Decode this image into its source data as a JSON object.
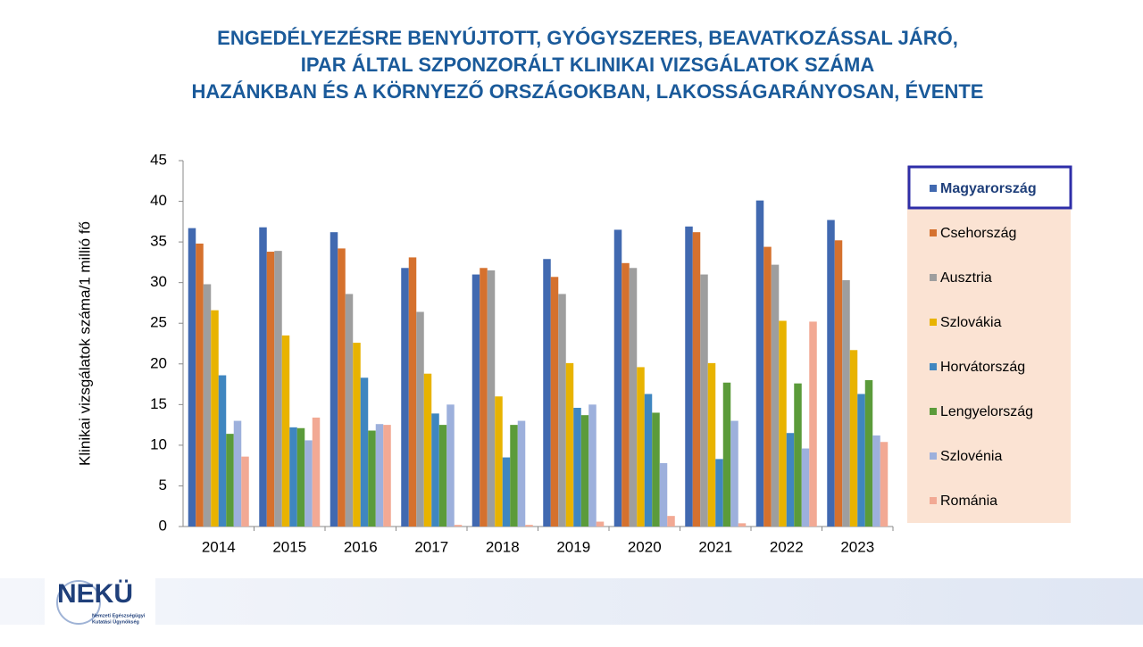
{
  "chart_data": {
    "type": "bar",
    "title": [
      "ENGEDÉLYEZÉSRE BENYÚJTOTT, GYÓGYSZERES, BEAVATKOZÁSSAL JÁRÓ,",
      "IPAR ÁLTAL SZPONZORÁLT KLINIKAI VIZSGÁLATOK SZÁMA",
      "HAZÁNKBAN ÉS A KÖRNYEZŐ ORSZÁGOKBAN, LAKOSSÁGARÁNYOSAN, ÉVENTE"
    ],
    "y_label": "Klinikai vizsgálatok száma/1  millió fő",
    "categories": [
      "2014",
      "2015",
      "2016",
      "2017",
      "2018",
      "2019",
      "2020",
      "2021",
      "2022",
      "2023"
    ],
    "series": [
      {
        "name": "Magyarország",
        "color": "#4169b0",
        "values": [
          36.7,
          36.8,
          36.2,
          31.8,
          31.0,
          32.9,
          36.5,
          36.9,
          40.1,
          37.7
        ]
      },
      {
        "name": "Csehország",
        "color": "#d5712e",
        "values": [
          34.8,
          33.8,
          34.2,
          33.1,
          31.8,
          30.7,
          32.4,
          36.2,
          34.4,
          35.2
        ]
      },
      {
        "name": "Ausztria",
        "color": "#9e9e9e",
        "values": [
          29.8,
          33.9,
          28.6,
          26.4,
          31.5,
          28.6,
          31.8,
          31.0,
          32.2,
          30.3
        ]
      },
      {
        "name": "Szlovákia",
        "color": "#e8b300",
        "values": [
          26.6,
          23.5,
          22.6,
          18.8,
          16.0,
          20.1,
          19.6,
          20.1,
          25.3,
          21.7
        ]
      },
      {
        "name": "Horvátország",
        "color": "#3f86c0",
        "values": [
          18.6,
          12.2,
          18.3,
          13.9,
          8.5,
          14.6,
          16.3,
          8.3,
          11.5,
          16.3
        ]
      },
      {
        "name": "Lengyelország",
        "color": "#5b9b3a",
        "values": [
          11.4,
          12.1,
          11.8,
          12.5,
          12.5,
          13.7,
          14.0,
          17.7,
          17.6,
          18.0
        ]
      },
      {
        "name": "Szlovénia",
        "color": "#9db0dc",
        "values": [
          13.0,
          10.6,
          12.6,
          15.0,
          13.0,
          15.0,
          7.8,
          13.0,
          9.6,
          11.2
        ]
      },
      {
        "name": "Románia",
        "color": "#f2a994",
        "values": [
          8.6,
          13.4,
          12.5,
          0.2,
          0.2,
          0.6,
          1.3,
          0.4,
          25.2,
          10.4
        ]
      }
    ],
    "ylim": [
      0,
      45
    ],
    "yticks": [
      0,
      5,
      10,
      15,
      20,
      25,
      30,
      35,
      40,
      45
    ],
    "grid": false,
    "legend_position": "right",
    "legend_highlight": 0
  },
  "logo": {
    "name": "NEKÜ",
    "subtitle": [
      "Nemzeti Egészségügyi",
      "Kutatási Ügynökség"
    ]
  }
}
